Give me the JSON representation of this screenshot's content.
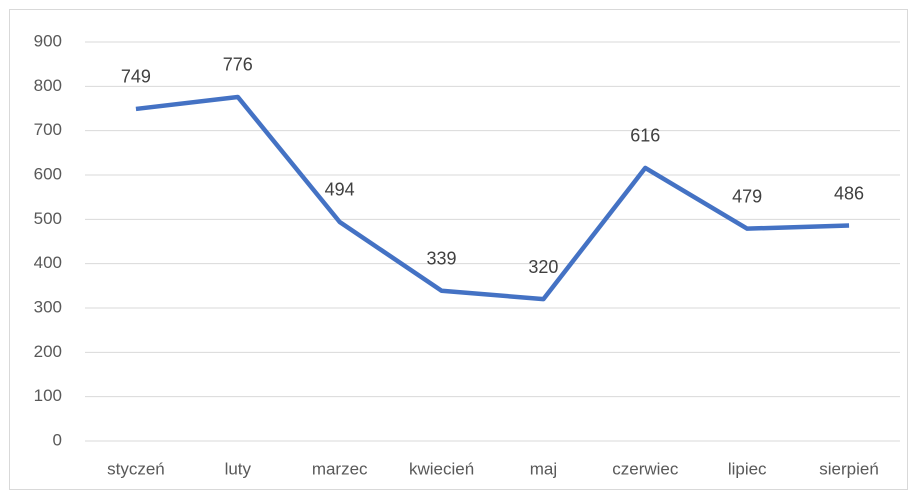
{
  "chart_data": {
    "type": "line",
    "categories": [
      "styczeń",
      "luty",
      "marzec",
      "kwiecień",
      "maj",
      "czerwiec",
      "lipiec",
      "sierpień"
    ],
    "series": [
      {
        "color": "#4472c4",
        "values": [
          749,
          776,
          494,
          339,
          320,
          616,
          479,
          486
        ]
      }
    ],
    "ylim": [
      0,
      900
    ],
    "yticks": [
      0,
      100,
      200,
      300,
      400,
      500,
      600,
      700,
      800,
      900
    ],
    "grid": true,
    "data_labels": true
  }
}
